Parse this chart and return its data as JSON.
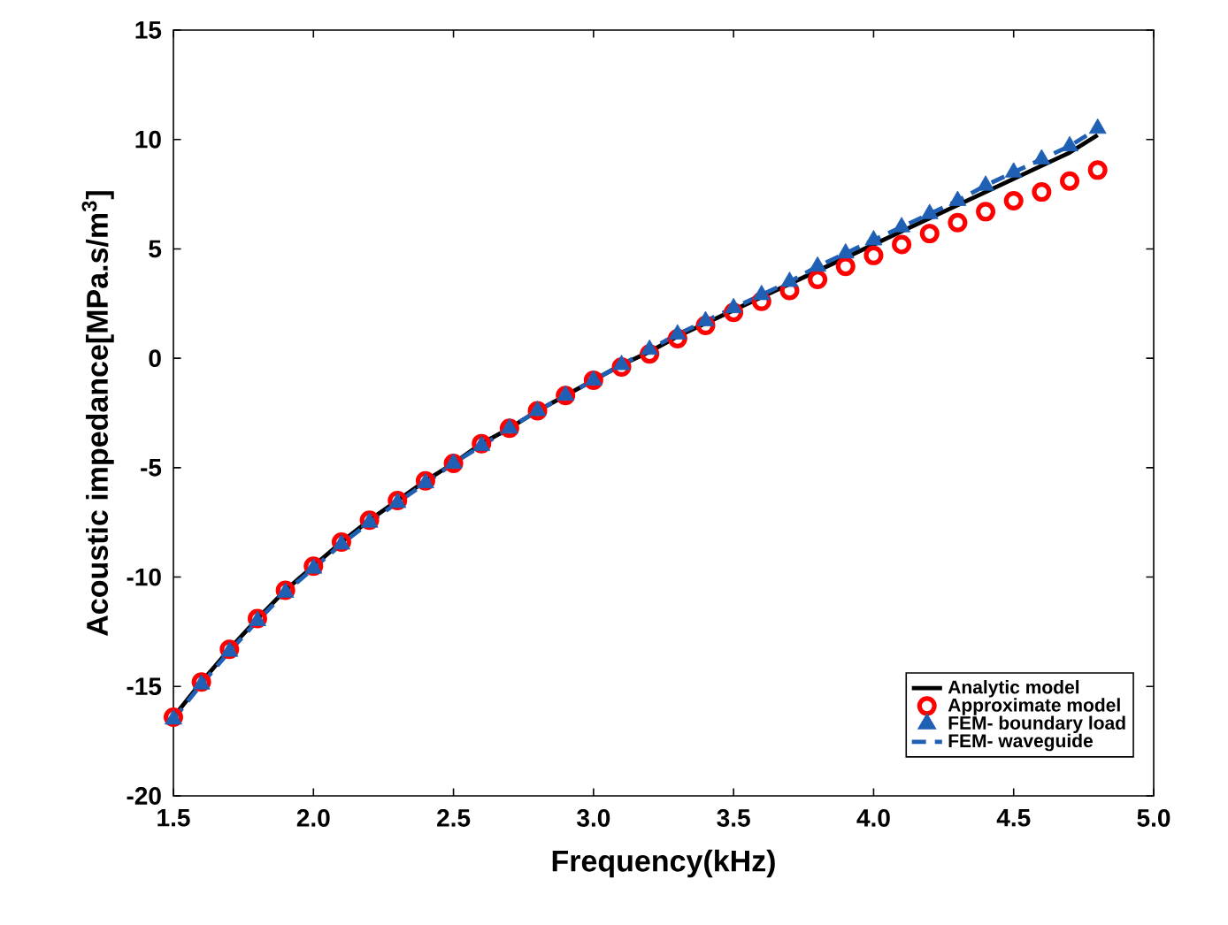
{
  "chart_data": {
    "type": "line",
    "xlabel": "Frequency(kHz)",
    "ylabel": "Acoustic impedance[MPa.s/m$^{3}$]",
    "x": [
      1.5,
      1.6,
      1.7,
      1.8,
      1.9,
      2.0,
      2.1,
      2.2,
      2.3,
      2.4,
      2.5,
      2.6,
      2.7,
      2.8,
      2.9,
      3.0,
      3.1,
      3.2,
      3.3,
      3.4,
      3.5,
      3.6,
      3.7,
      3.8,
      3.9,
      4.0,
      4.1,
      4.2,
      4.3,
      4.4,
      4.5,
      4.6,
      4.7,
      4.8
    ],
    "series": [
      {
        "name": "Analytic model",
        "color": "#000000",
        "marker": "none",
        "line_style": "solid",
        "values": [
          -16.4,
          -14.8,
          -13.3,
          -11.9,
          -10.6,
          -9.5,
          -8.4,
          -7.4,
          -6.5,
          -5.6,
          -4.8,
          -3.9,
          -3.2,
          -2.4,
          -1.7,
          -1.0,
          -0.3,
          0.3,
          1.0,
          1.6,
          2.2,
          2.8,
          3.4,
          4.0,
          4.6,
          5.2,
          5.8,
          6.4,
          7.0,
          7.6,
          8.2,
          8.8,
          9.4,
          10.2
        ]
      },
      {
        "name": "Approximate model",
        "type": "scatter",
        "color": "#ff0000",
        "marker": "circle",
        "values": [
          -16.4,
          -14.8,
          -13.3,
          -11.9,
          -10.6,
          -9.5,
          -8.4,
          -7.4,
          -6.5,
          -5.6,
          -4.8,
          -3.9,
          -3.2,
          -2.4,
          -1.7,
          -1.0,
          -0.4,
          0.2,
          0.9,
          1.5,
          2.1,
          2.6,
          3.1,
          3.6,
          4.2,
          4.7,
          5.2,
          5.7,
          6.2,
          6.7,
          7.2,
          7.6,
          8.1,
          8.6
        ]
      },
      {
        "name": "FEM- boundary load",
        "type": "scatter",
        "color": "#1f5fb4",
        "marker": "triangle",
        "values": [
          -16.5,
          -14.9,
          -13.4,
          -12.0,
          -10.7,
          -9.6,
          -8.5,
          -7.5,
          -6.6,
          -5.7,
          -4.8,
          -4.0,
          -3.2,
          -2.4,
          -1.7,
          -1.0,
          -0.3,
          0.4,
          1.1,
          1.7,
          2.3,
          2.9,
          3.5,
          4.2,
          4.8,
          5.4,
          6.0,
          6.6,
          7.2,
          7.9,
          8.5,
          9.1,
          9.7,
          10.5
        ]
      },
      {
        "name": "FEM- waveguide",
        "color": "#1f5fb4",
        "marker": "none",
        "line_style": "dashed",
        "values": [
          -16.5,
          -14.9,
          -13.4,
          -12.0,
          -10.7,
          -9.6,
          -8.5,
          -7.5,
          -6.6,
          -5.7,
          -4.8,
          -4.0,
          -3.2,
          -2.4,
          -1.7,
          -1.0,
          -0.3,
          0.4,
          1.1,
          1.7,
          2.3,
          2.9,
          3.5,
          4.2,
          4.8,
          5.4,
          6.0,
          6.6,
          7.2,
          7.9,
          8.5,
          9.1,
          9.7,
          10.5
        ]
      }
    ],
    "xlim": [
      1.5,
      5.0
    ],
    "xticks": [
      {
        "value": 1.5,
        "label": "1.5"
      },
      {
        "value": 2.0,
        "label": "2.0"
      },
      {
        "value": 2.5,
        "label": "2.5"
      },
      {
        "value": 3.0,
        "label": "3.0"
      },
      {
        "value": 3.5,
        "label": "3.5"
      },
      {
        "value": 4.0,
        "label": "4.0"
      },
      {
        "value": 4.5,
        "label": "4.5"
      },
      {
        "value": 5.0,
        "label": "5.0"
      }
    ],
    "ylim": [
      -20,
      15
    ],
    "yticks": [
      -20,
      -15,
      -10,
      -5,
      0,
      5,
      10,
      15
    ],
    "grid": false,
    "legend": "bottom right"
  }
}
